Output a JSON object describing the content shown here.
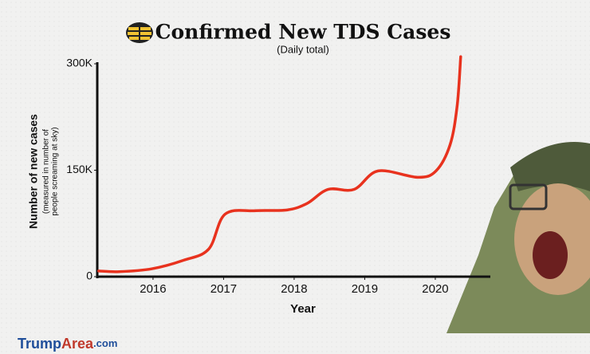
{
  "chart_data": {
    "type": "line",
    "title": "Confirmed New TDS Cases",
    "subtitle": "(Daily total)",
    "x_label": "Year",
    "y_label": "Number of new cases",
    "y_label_note": [
      "(measured in number of",
      "people screaming at sky)"
    ],
    "x": [
      2015.23,
      2015.52,
      2015.98,
      2016.43,
      2016.79,
      2017.02,
      2017.45,
      2017.9,
      2018.18,
      2018.48,
      2018.85,
      2019.19,
      2019.75,
      2020.01,
      2020.21,
      2020.31,
      2020.36
    ],
    "series": [
      {
        "color": "#e8321e",
        "values": [
          8000,
          7000,
          11000,
          23000,
          39000,
          88000,
          93000,
          94000,
          103000,
          123000,
          123000,
          149000,
          140000,
          149000,
          186000,
          241000,
          310000
        ]
      }
    ],
    "xlim": [
      2015.21,
      2020.78
    ],
    "xticks": [
      2016,
      2017,
      2018,
      2019,
      2020
    ],
    "ylim": [
      0,
      300000
    ],
    "yticks": [
      0,
      {
        "value": 150000,
        "label": "150K"
      },
      {
        "value": 300000,
        "label": "300K"
      }
    ],
    "watermark": [
      "Trump",
      "Area",
      ".com"
    ]
  }
}
